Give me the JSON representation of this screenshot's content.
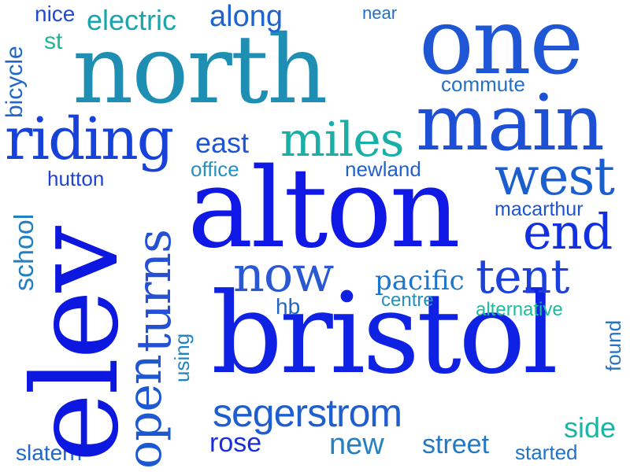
{
  "words": [
    {
      "id": "north",
      "text": "north",
      "color": "#1e8fb3"
    },
    {
      "id": "one",
      "text": "one",
      "color": "#1f56d6"
    },
    {
      "id": "alton",
      "text": "alton",
      "color": "#1018e6"
    },
    {
      "id": "bristol",
      "text": "bristol",
      "color": "#0f21e2"
    },
    {
      "id": "elev",
      "text": "elev",
      "color": "#0c18e0"
    },
    {
      "id": "main",
      "text": "main",
      "color": "#1d50d5"
    },
    {
      "id": "riding",
      "text": "riding",
      "color": "#1642d9"
    },
    {
      "id": "miles",
      "text": "miles",
      "color": "#18b0a6"
    },
    {
      "id": "west",
      "text": "west",
      "color": "#1a5fd0"
    },
    {
      "id": "end",
      "text": "end",
      "color": "#1230e0"
    },
    {
      "id": "now",
      "text": "now",
      "color": "#2a57d2"
    },
    {
      "id": "tent",
      "text": "tent",
      "color": "#1c40dc"
    },
    {
      "id": "pacific",
      "text": "pacific",
      "color": "#1e76cb"
    },
    {
      "id": "segerstrom",
      "text": "segerstrom",
      "color": "#1f5ecf"
    },
    {
      "id": "turns",
      "text": "turns",
      "color": "#2350d4"
    },
    {
      "id": "open",
      "text": "open",
      "color": "#1c58d1"
    },
    {
      "id": "electric",
      "text": "electric",
      "color": "#1aa5aa"
    },
    {
      "id": "along",
      "text": "along",
      "color": "#1e63ce"
    },
    {
      "id": "nice",
      "text": "nice",
      "color": "#1f4ad3"
    },
    {
      "id": "near",
      "text": "near",
      "color": "#2270c8"
    },
    {
      "id": "st",
      "text": "st",
      "color": "#1db59d"
    },
    {
      "id": "bicycle",
      "text": "bicycle",
      "color": "#2067c9"
    },
    {
      "id": "commute",
      "text": "commute",
      "color": "#2470c6"
    },
    {
      "id": "east",
      "text": "east",
      "color": "#1d55d2"
    },
    {
      "id": "office",
      "text": "office",
      "color": "#2591c2"
    },
    {
      "id": "newland",
      "text": "newland",
      "color": "#1f62cd"
    },
    {
      "id": "hutton",
      "text": "hutton",
      "color": "#1f43d6"
    },
    {
      "id": "school",
      "text": "school",
      "color": "#2180c4"
    },
    {
      "id": "macarthur",
      "text": "macarthur",
      "color": "#1f54d0"
    },
    {
      "id": "hb",
      "text": "hb",
      "color": "#2066cb"
    },
    {
      "id": "centre",
      "text": "centre",
      "color": "#2391c0"
    },
    {
      "id": "alternative",
      "text": "alternative",
      "color": "#1bbe9b"
    },
    {
      "id": "using",
      "text": "using",
      "color": "#2384c3"
    },
    {
      "id": "found",
      "text": "found",
      "color": "#2274c6"
    },
    {
      "id": "side",
      "text": "side",
      "color": "#1ab6a4"
    },
    {
      "id": "rose",
      "text": "rose",
      "color": "#1b2ede"
    },
    {
      "id": "new",
      "text": "new",
      "color": "#2481c3"
    },
    {
      "id": "street",
      "text": "street",
      "color": "#2479c5"
    },
    {
      "id": "started",
      "text": "started",
      "color": "#2272c7"
    },
    {
      "id": "slatern",
      "text": "slatern",
      "color": "#2268cb"
    }
  ]
}
